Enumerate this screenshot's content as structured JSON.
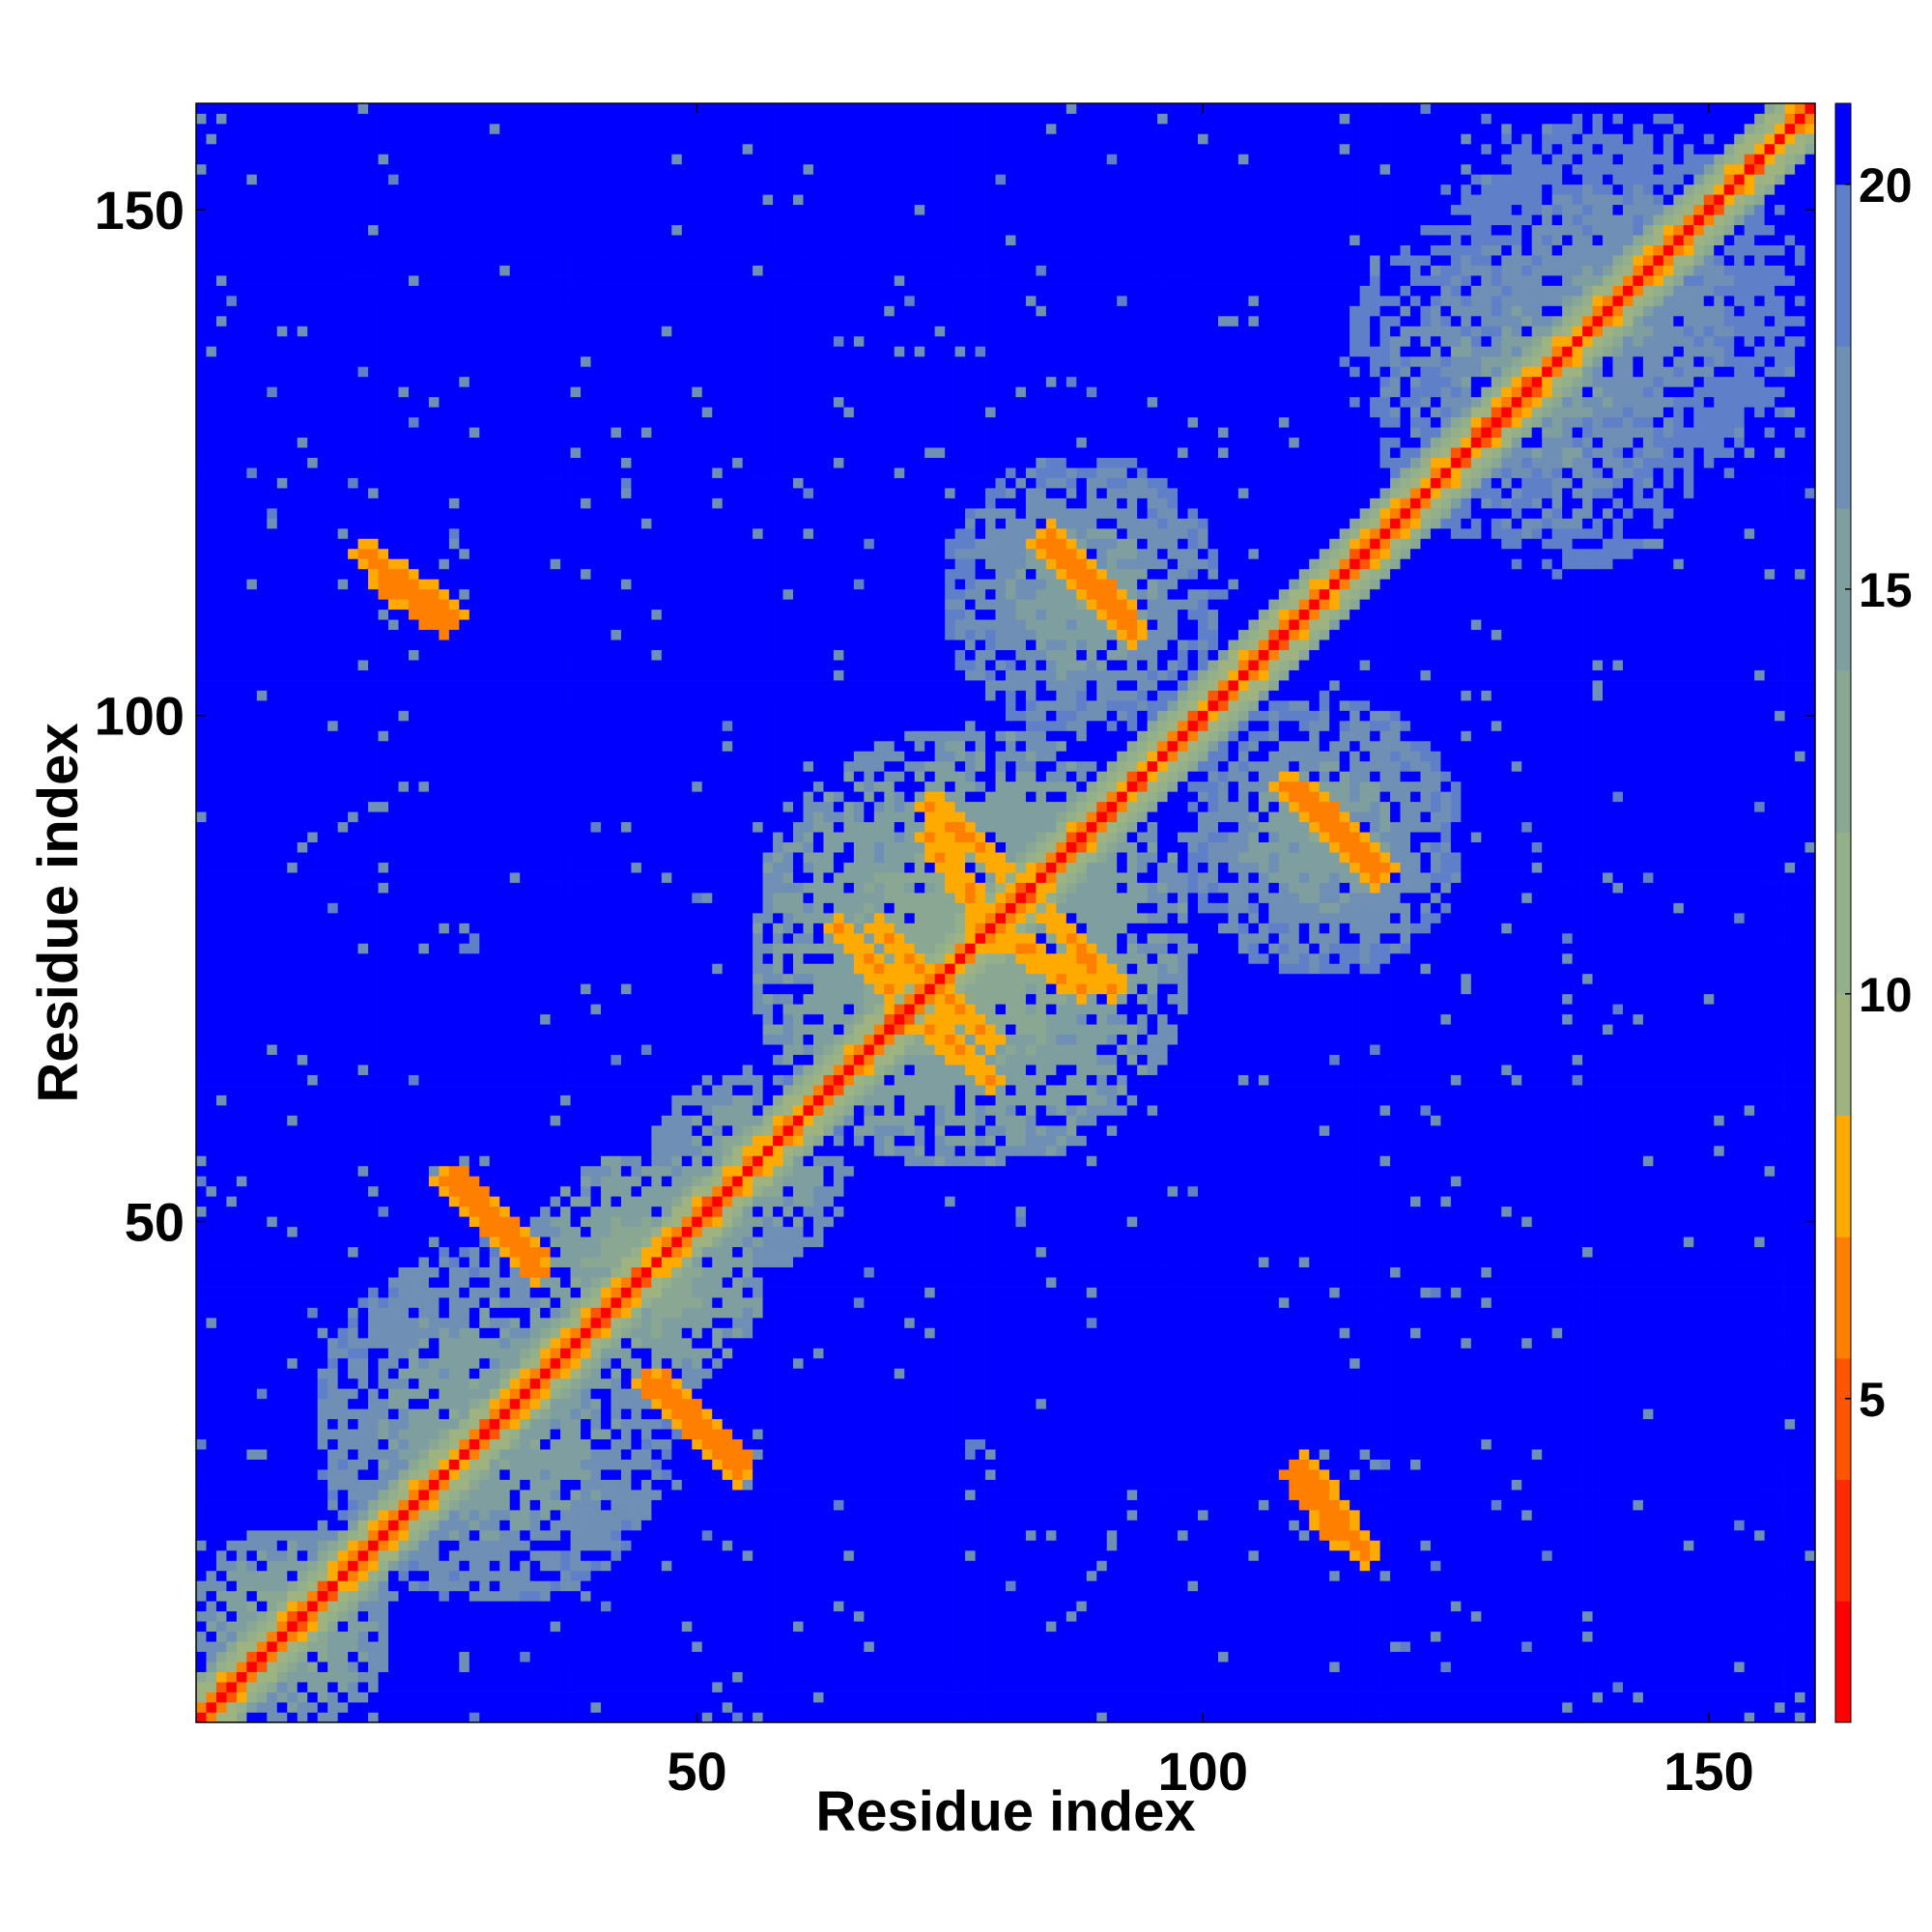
{
  "chart_data": {
    "type": "heatmap",
    "title": "",
    "xlabel": "Residue index",
    "ylabel": "Residue index",
    "n_residues": 160,
    "xlim": [
      1,
      160
    ],
    "ylim": [
      1,
      160
    ],
    "x_ticks": [
      50,
      100,
      150
    ],
    "y_ticks": [
      50,
      100,
      150
    ],
    "colorbar": {
      "ticks": [
        5,
        10,
        15,
        20
      ],
      "range": [
        1,
        21
      ],
      "levels": [
        {
          "max": 2.5,
          "color": "#ff0000"
        },
        {
          "max": 4,
          "color": "#ff2a00"
        },
        {
          "max": 5.5,
          "color": "#ff5500"
        },
        {
          "max": 7,
          "color": "#ff8000"
        },
        {
          "max": 8.5,
          "color": "#ffaa00"
        },
        {
          "max": 10,
          "color": "#9fb380"
        },
        {
          "max": 12,
          "color": "#94b08a"
        },
        {
          "max": 14,
          "color": "#8aa794"
        },
        {
          "max": 16,
          "color": "#7f9ea0"
        },
        {
          "max": 18,
          "color": "#6f8fb4"
        },
        {
          "max": 20,
          "color": "#5f80c8"
        },
        {
          "max": 21,
          "color": "#0000ff"
        }
      ]
    },
    "contact_features": [
      {
        "kind": "diagonal",
        "value": 1.8
      },
      {
        "kind": "helix_band",
        "from": 1,
        "to": 160,
        "offset": 1,
        "value": 5.0
      },
      {
        "kind": "helix_band",
        "from": 1,
        "to": 160,
        "offset": 2,
        "value": 7.5
      },
      {
        "kind": "helix_band",
        "from": 1,
        "to": 160,
        "offset": 3,
        "value": 9.5
      },
      {
        "kind": "helix_band",
        "from": 1,
        "to": 160,
        "offset": 4,
        "value": 12.0
      },
      {
        "kind": "strip",
        "x": [
          26,
          34
        ],
        "y": [
          54,
          46
        ],
        "width": 1.2,
        "value": 6.0
      },
      {
        "kind": "strip",
        "x": [
          45,
          54
        ],
        "y": [
          34,
          25
        ],
        "width": 1.2,
        "value": 6.0
      },
      {
        "kind": "strip",
        "x": [
          17,
          26
        ],
        "y": [
          116,
          110
        ],
        "width": 1.0,
        "value": 6.0
      },
      {
        "kind": "strip",
        "x": [
          85,
          92
        ],
        "y": [
          118,
          110
        ],
        "width": 1.0,
        "value": 6.0
      },
      {
        "kind": "strip",
        "x": [
          73,
          80
        ],
        "y": [
          91,
          85
        ],
        "width": 1.0,
        "value": 6.5
      },
      {
        "kind": "strip",
        "x": [
          68,
          73
        ],
        "y": [
          79,
          73
        ],
        "width": 1.0,
        "value": 6.5
      },
      {
        "kind": "strip",
        "x": [
          79,
          88
        ],
        "y": [
          79,
          73
        ],
        "width": 1.0,
        "value": 6.5
      },
      {
        "kind": "strip",
        "x": [
          73,
          79
        ],
        "y": [
          69,
          64
        ],
        "width": 1.0,
        "value": 6.5
      },
      {
        "kind": "strip",
        "x": [
          108,
          117
        ],
        "y": [
          93,
          84
        ],
        "width": 1.0,
        "value": 6.0
      },
      {
        "kind": "strip",
        "x": [
          109,
          113
        ],
        "y": [
          25,
          19
        ],
        "width": 1.0,
        "value": 5.5
      },
      {
        "kind": "blob",
        "cx": 77,
        "cy": 77,
        "r": 22,
        "value": 11.0
      },
      {
        "kind": "blob",
        "cx": 70,
        "cy": 84,
        "r": 9,
        "value": 13.0
      },
      {
        "kind": "blob",
        "cx": 84,
        "cy": 70,
        "r": 9,
        "value": 13.0
      },
      {
        "kind": "blob",
        "cx": 88,
        "cy": 112,
        "r": 14,
        "value": 13.0
      },
      {
        "kind": "blob",
        "cx": 112,
        "cy": 88,
        "r": 14,
        "value": 13.0
      },
      {
        "kind": "blob",
        "cx": 140,
        "cy": 140,
        "r": 20,
        "value": 14.5
      },
      {
        "kind": "blob",
        "cx": 130,
        "cy": 135,
        "r": 16,
        "value": 14.0
      },
      {
        "kind": "blob",
        "cx": 28,
        "cy": 78,
        "r": 5,
        "value": 18.0
      },
      {
        "kind": "blob",
        "cx": 78,
        "cy": 28,
        "r": 5,
        "value": 18.0
      },
      {
        "kind": "blob",
        "cx": 30,
        "cy": 30,
        "r": 18,
        "value": 12.5
      },
      {
        "kind": "blob",
        "cx": 45,
        "cy": 45,
        "r": 12,
        "value": 11.0
      },
      {
        "kind": "blob",
        "cx": 10,
        "cy": 10,
        "r": 10,
        "value": 11.5
      },
      {
        "kind": "blob",
        "cx": 55,
        "cy": 55,
        "r": 10,
        "value": 12.0
      }
    ]
  }
}
